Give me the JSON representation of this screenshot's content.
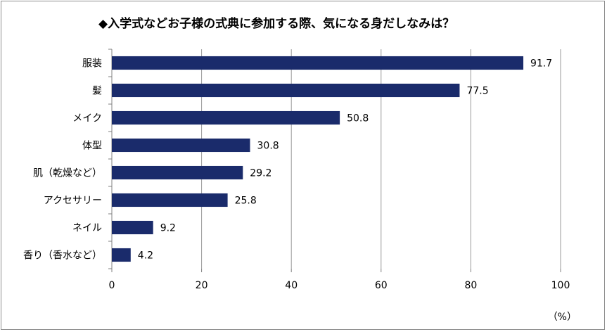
{
  "chart_data": {
    "type": "bar",
    "orientation": "horizontal",
    "title": "◆入学式などお子様の式典に参加する際、気になる身だしなみは？",
    "categories": [
      "服装",
      "髪",
      "メイク",
      "体型",
      "肌（乾燥など）",
      "アクセサリー",
      "ネイル",
      "香り（香水など）"
    ],
    "values": [
      91.7,
      77.5,
      50.8,
      30.8,
      29.2,
      25.8,
      9.2,
      4.2
    ],
    "value_labels": [
      "91.7",
      "77.5",
      "50.8",
      "30.8",
      "29.2",
      "25.8",
      "9.2",
      "4.2"
    ],
    "xlim": [
      0,
      100
    ],
    "x_ticks": [
      0,
      20,
      40,
      60,
      80,
      100
    ],
    "x_tick_labels": [
      "0",
      "20",
      "40",
      "60",
      "80",
      "100"
    ],
    "unit": "（%）",
    "grid": true,
    "bar_color": "#1a2b6b",
    "grid_color": "#9a9a9a"
  }
}
